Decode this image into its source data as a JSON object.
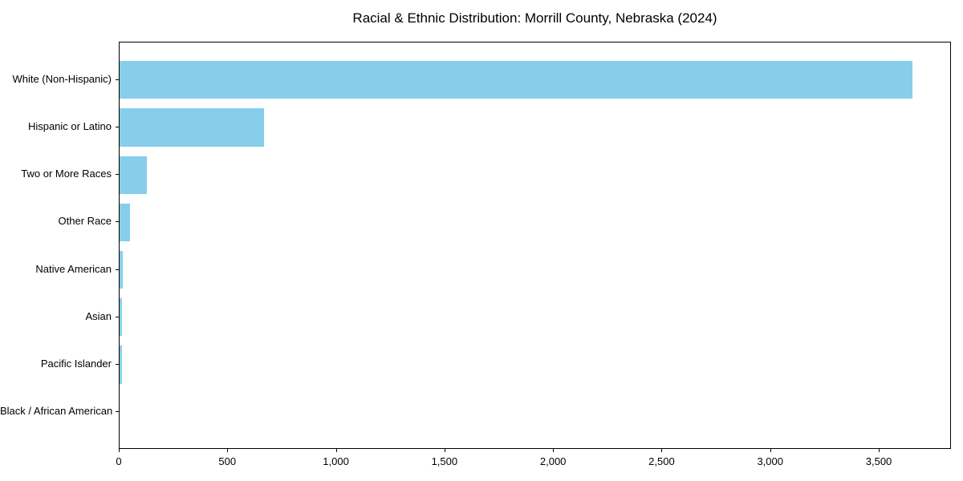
{
  "title": "Racial & Ethnic Distribution: Morrill County, Nebraska (2024)",
  "chart_data": {
    "type": "bar",
    "orientation": "horizontal",
    "title": "Racial & Ethnic Distribution: Morrill County, Nebraska (2024)",
    "categories": [
      "White (Non-Hispanic)",
      "Hispanic or Latino",
      "Two or More Races",
      "Other Race",
      "Native American",
      "Asian",
      "Pacific Islander",
      "Black / African American"
    ],
    "values": [
      3650,
      665,
      125,
      48,
      16,
      12,
      12,
      0
    ],
    "xlabel": "",
    "ylabel": "",
    "xlim": [
      0,
      3832.5
    ],
    "x_ticks": [
      0,
      500,
      1000,
      1500,
      2000,
      2500,
      3000,
      3500
    ],
    "x_tick_labels": [
      "0",
      "500",
      "1,000",
      "1,500",
      "2,000",
      "2,500",
      "3,000",
      "3,500"
    ],
    "bar_color": "#87CEEB",
    "background_color": "#FFFFFF",
    "axis_color": "#000000",
    "grid": false,
    "legend": null
  }
}
